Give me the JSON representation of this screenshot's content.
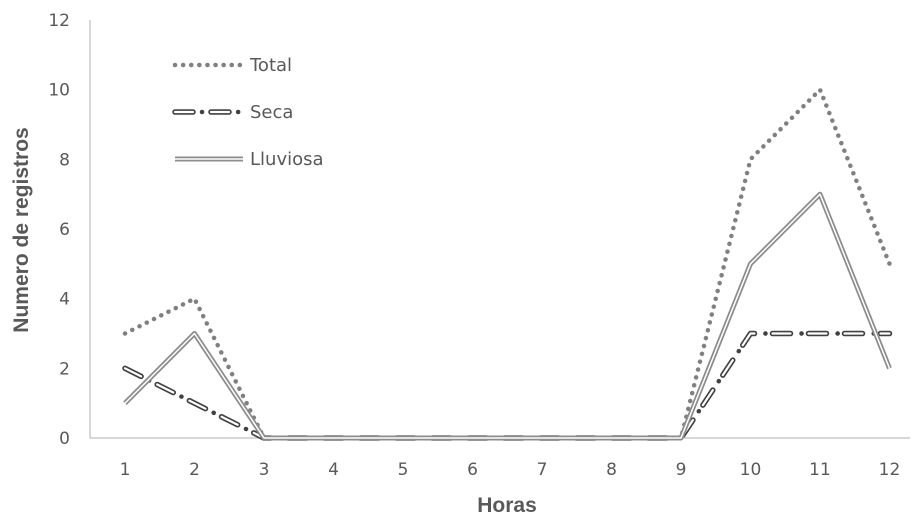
{
  "chart_data": {
    "type": "line",
    "title": "",
    "xlabel": "Horas",
    "ylabel": "Numero de registros",
    "x": [
      1,
      2,
      3,
      4,
      5,
      6,
      7,
      8,
      9,
      10,
      11,
      12
    ],
    "ylim": [
      0,
      12
    ],
    "yticks": [
      0,
      2,
      4,
      6,
      8,
      10,
      12
    ],
    "grid": false,
    "legend_position": "top-left",
    "series": [
      {
        "name": "Total",
        "style": "dotted",
        "color": "#808080",
        "values": [
          3,
          4,
          0,
          0,
          0,
          0,
          0,
          0,
          0,
          8,
          10,
          5
        ]
      },
      {
        "name": "Seca",
        "style": "dash-dot",
        "color": "#404040",
        "values": [
          2,
          1,
          0,
          0,
          0,
          0,
          0,
          0,
          0,
          3,
          3,
          3
        ]
      },
      {
        "name": "Lluviosa",
        "style": "double",
        "color": "#8c8c8c",
        "values": [
          1,
          3,
          0,
          0,
          0,
          0,
          0,
          0,
          0,
          5,
          7,
          2
        ]
      }
    ]
  }
}
